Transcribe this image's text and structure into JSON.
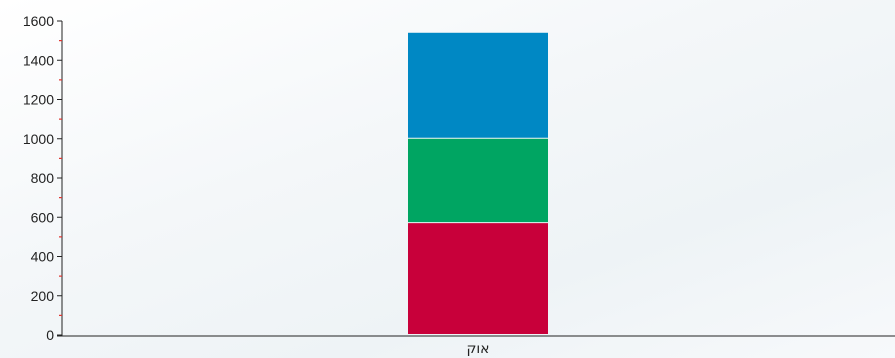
{
  "chart_data": {
    "type": "bar",
    "stacked": true,
    "categories": [
      "אוק"
    ],
    "series": [
      {
        "values": [
          570
        ],
        "color": "#c8003a"
      },
      {
        "values": [
          430
        ],
        "color": "#00a562"
      },
      {
        "values": [
          540
        ],
        "color": "#0088c4"
      }
    ],
    "ylim": [
      0,
      1600
    ],
    "yticks": [
      "0",
      "200",
      "400",
      "600",
      "800",
      "1000",
      "1200",
      "1400",
      "1600"
    ],
    "minor_tick_color": "#e0322d",
    "axis_color": "#222222",
    "grid": false,
    "legend": "none"
  }
}
